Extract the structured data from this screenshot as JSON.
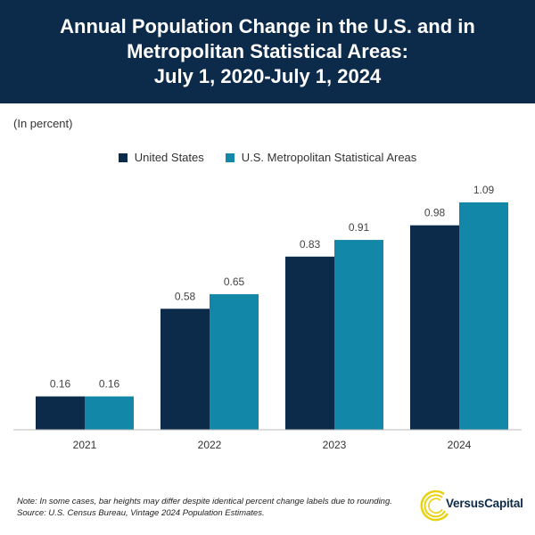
{
  "header": {
    "title_lines": [
      "Annual Population Change in the U.S. and in",
      "Metropolitan Statistical Areas:",
      "July 1, 2020-July 1, 2024"
    ]
  },
  "unit_label": "(In percent)",
  "colors": {
    "header_bg": "#0c2a4a",
    "united_states": "#0c2a4a",
    "metro_areas": "#1287a8",
    "logo_accent": "#e8d10f"
  },
  "chart_data": {
    "type": "bar",
    "title": "Annual Population Change in the U.S. and in Metropolitan Statistical Areas: July 1, 2020-July 1, 2024",
    "ylabel": "(In percent)",
    "xlabel": "",
    "categories": [
      "2021",
      "2022",
      "2023",
      "2024"
    ],
    "series": [
      {
        "name": "United States",
        "values": [
          0.16,
          0.58,
          0.83,
          0.98
        ],
        "labels": [
          "0.16",
          "0.58",
          "0.83",
          "0.98"
        ]
      },
      {
        "name": "U.S. Metropolitan Statistical Areas",
        "values": [
          0.16,
          0.65,
          0.91,
          1.09
        ],
        "labels": [
          "0.16",
          "0.65",
          "0.91",
          "1.09"
        ]
      }
    ],
    "ylim": [
      0,
      1.15
    ],
    "grid": false,
    "legend": "top-center"
  },
  "footer": {
    "note": "Note: In some cases, bar heights may differ despite identical percent change labels due to rounding.",
    "source": "Source: U.S. Census Bureau, Vintage 2024 Population Estimates."
  },
  "logo": {
    "text": "VersusCapital"
  }
}
